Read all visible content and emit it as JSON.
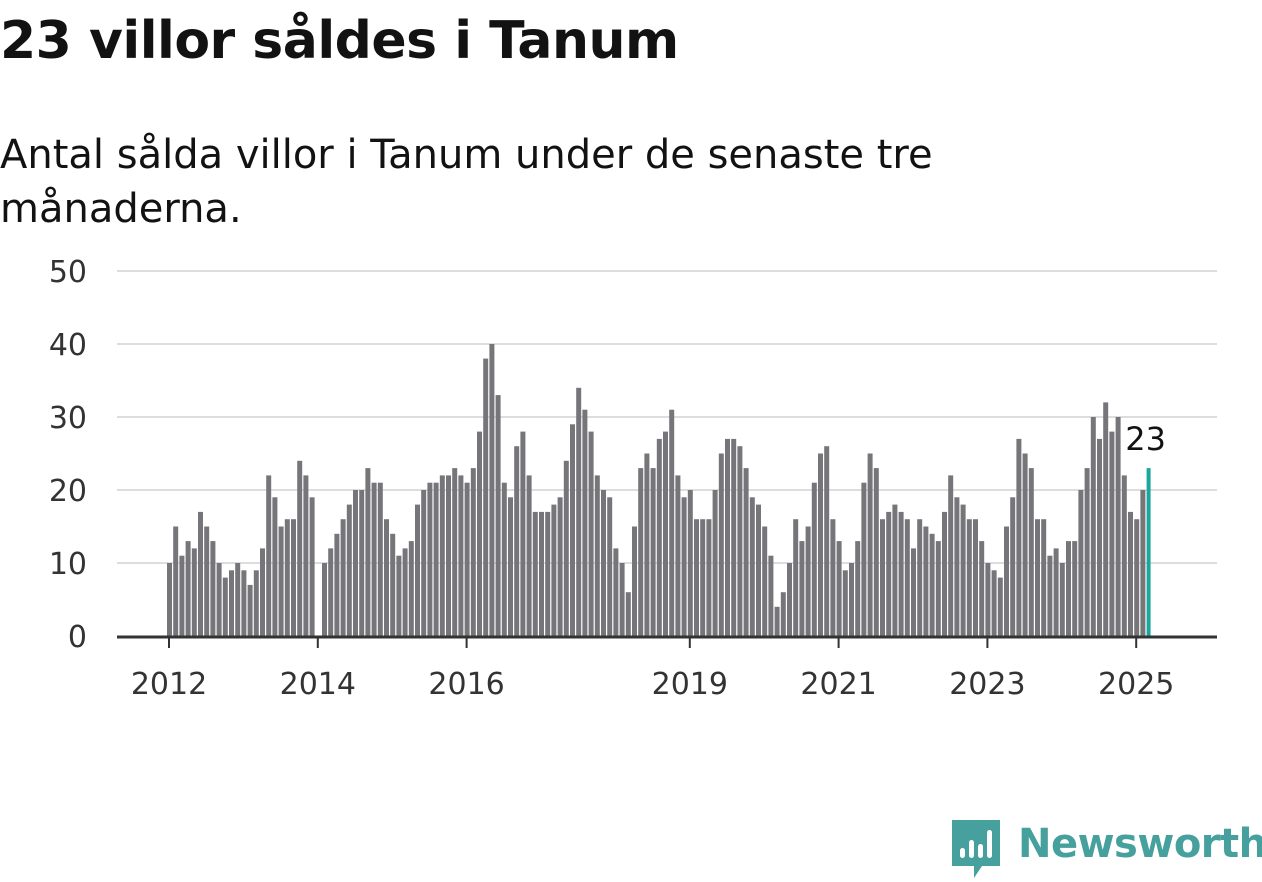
{
  "title": "23 villor såldes i Tanum",
  "subtitle": "Antal sålda villor i Tanum under de senaste tre månaderna.",
  "brand": {
    "name": "Newsworthy",
    "color": "#45a09e",
    "icon": "newsworthy-logo-icon"
  },
  "colors": {
    "bar": "#76757a",
    "highlight": "#1aa89c",
    "grid": "#dddddd",
    "axis": "#333333"
  },
  "chart_data": {
    "type": "bar",
    "x_ticks": [
      "2012",
      "2014",
      "2016",
      "2019",
      "2021",
      "2023",
      "2025"
    ],
    "y_ticks": [
      "0",
      "10",
      "20",
      "30",
      "40",
      "50"
    ],
    "ylim": [
      0,
      50
    ],
    "grid": true,
    "highlight_label": "23",
    "series": [
      {
        "values": [
          10,
          15,
          11,
          13,
          12,
          17,
          15,
          13,
          10,
          8,
          9,
          10,
          9,
          7,
          9,
          12,
          22,
          19,
          15,
          16,
          16,
          24,
          22,
          19,
          0,
          10,
          12,
          14,
          16,
          18,
          20,
          20,
          23,
          21,
          21,
          16,
          14,
          11,
          12,
          13,
          18,
          20,
          21,
          21,
          22,
          22,
          23,
          22,
          21,
          23,
          28,
          38,
          40,
          33,
          21,
          19,
          26,
          28,
          22,
          17,
          17,
          17,
          18,
          19,
          24,
          29,
          34,
          31,
          28,
          22,
          20,
          19,
          12,
          10,
          6,
          15,
          23,
          25,
          23,
          27,
          28,
          31,
          22,
          19,
          20,
          16,
          16,
          16,
          20,
          25,
          27,
          27,
          26,
          23,
          19,
          18,
          15,
          11,
          4,
          6,
          10,
          16,
          13,
          15,
          21,
          25,
          26,
          16,
          13,
          9,
          10,
          13,
          21,
          25,
          23,
          16,
          17,
          18,
          17,
          16,
          12,
          16,
          15,
          14,
          13,
          17,
          22,
          19,
          18,
          16,
          16,
          13,
          10,
          9,
          8,
          15,
          19,
          27,
          25,
          23,
          16,
          16,
          11,
          12,
          10,
          13,
          13,
          20,
          23,
          30,
          27,
          32,
          28,
          30,
          22,
          17,
          16,
          20,
          23
        ]
      }
    ]
  }
}
